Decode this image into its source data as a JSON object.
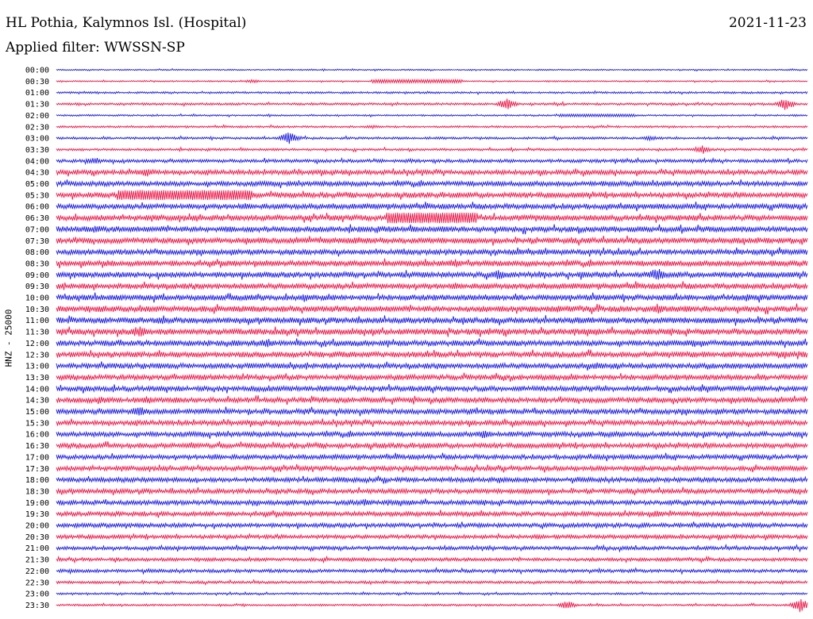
{
  "header": {
    "title": "HL Pothia, Kalymnos Isl. (Hospital)",
    "date": "2021-11-23",
    "filter": "Applied filter: WWSSN-SP",
    "ylabel": "HNZ - 25000"
  },
  "colors": {
    "blue": "#1a1ae6",
    "red": "#f01446",
    "text": "#000000"
  },
  "chart_data": {
    "type": "line",
    "ylabel": "HNZ - 25000",
    "trace_labels": [
      "00:00",
      "00:30",
      "01:00",
      "01:30",
      "02:00",
      "02:30",
      "03:00",
      "03:30",
      "04:00",
      "04:30",
      "05:00",
      "05:30",
      "06:00",
      "06:30",
      "07:00",
      "07:30",
      "08:00",
      "08:30",
      "09:00",
      "09:30",
      "10:00",
      "10:30",
      "11:00",
      "11:30",
      "12:00",
      "12:30",
      "13:00",
      "13:30",
      "14:00",
      "14:30",
      "15:00",
      "15:30",
      "16:00",
      "16:30",
      "17:00",
      "17:30",
      "18:00",
      "18:30",
      "19:00",
      "19:30",
      "20:00",
      "20:30",
      "21:00",
      "21:30",
      "22:00",
      "22:30",
      "23:00",
      "23:30"
    ],
    "trace_colors_cycle": [
      "blue",
      "red"
    ],
    "relative_noise_amplitude": [
      0.2,
      0.2,
      0.3,
      0.35,
      0.25,
      0.3,
      0.35,
      0.35,
      0.5,
      0.7,
      0.75,
      0.8,
      0.8,
      0.85,
      0.85,
      0.85,
      0.8,
      0.85,
      0.85,
      0.85,
      0.85,
      0.9,
      0.9,
      0.9,
      0.85,
      0.85,
      0.8,
      0.8,
      0.8,
      0.8,
      0.8,
      0.75,
      0.75,
      0.75,
      0.7,
      0.7,
      0.7,
      0.7,
      0.7,
      0.7,
      0.65,
      0.6,
      0.55,
      0.5,
      0.5,
      0.4,
      0.3,
      0.3
    ],
    "events": [
      {
        "trace": "00:30",
        "t": 0.26,
        "amp": 0.6
      },
      {
        "trace": "00:30",
        "t": 0.48,
        "amp": 0.5,
        "width": 0.12
      },
      {
        "trace": "01:30",
        "t": 0.6,
        "amp": 1.8
      },
      {
        "trace": "01:30",
        "t": 0.97,
        "amp": 1.8
      },
      {
        "trace": "02:00",
        "t": 0.72,
        "amp": 0.4,
        "width": 0.1
      },
      {
        "trace": "02:30",
        "t": 0.42,
        "amp": 0.6
      },
      {
        "trace": "03:00",
        "t": 0.31,
        "amp": 2.0
      },
      {
        "trace": "03:00",
        "t": 0.79,
        "amp": 0.8
      },
      {
        "trace": "03:30",
        "t": 0.86,
        "amp": 1.4
      },
      {
        "trace": "04:00",
        "t": 0.05,
        "amp": 1.2
      },
      {
        "trace": "04:30",
        "t": 0.12,
        "amp": 1.4
      },
      {
        "trace": "05:30",
        "t": 0.17,
        "amp": 1.5,
        "width": 0.18
      },
      {
        "trace": "06:30",
        "t": 0.5,
        "amp": 1.6,
        "width": 0.12
      },
      {
        "trace": "07:00",
        "t": 0.05,
        "amp": 1.1
      },
      {
        "trace": "07:00",
        "t": 0.23,
        "amp": 1.1
      },
      {
        "trace": "07:30",
        "t": 0.4,
        "amp": 1.1
      },
      {
        "trace": "08:30",
        "t": 0.07,
        "amp": 1.2
      },
      {
        "trace": "08:30",
        "t": 0.53,
        "amp": 1.4
      },
      {
        "trace": "09:00",
        "t": 0.59,
        "amp": 1.7
      },
      {
        "trace": "09:00",
        "t": 0.8,
        "amp": 2.2
      },
      {
        "trace": "10:00",
        "t": 0.33,
        "amp": 1.3
      },
      {
        "trace": "10:00",
        "t": 0.92,
        "amp": 1.3
      },
      {
        "trace": "10:30",
        "t": 0.8,
        "amp": 1.6
      },
      {
        "trace": "11:00",
        "t": 0.14,
        "amp": 1.3
      },
      {
        "trace": "11:30",
        "t": 0.11,
        "amp": 1.8
      },
      {
        "trace": "12:00",
        "t": 0.28,
        "amp": 1.5
      },
      {
        "trace": "12:00",
        "t": 0.85,
        "amp": 1.3
      },
      {
        "trace": "12:30",
        "t": 0.97,
        "amp": 1.4
      },
      {
        "trace": "13:00",
        "t": 0.72,
        "amp": 1.2
      },
      {
        "trace": "14:30",
        "t": 0.06,
        "amp": 1.2
      },
      {
        "trace": "14:30",
        "t": 0.12,
        "amp": 1.3
      },
      {
        "trace": "15:00",
        "t": 0.11,
        "amp": 1.7
      },
      {
        "trace": "16:00",
        "t": 0.57,
        "amp": 1.6
      },
      {
        "trace": "16:30",
        "t": 0.18,
        "amp": 1.2
      },
      {
        "trace": "19:00",
        "t": 0.41,
        "amp": 1.2
      },
      {
        "trace": "19:30",
        "t": 0.8,
        "amp": 1.1
      },
      {
        "trace": "23:30",
        "t": 0.68,
        "amp": 1.3
      },
      {
        "trace": "23:30",
        "t": 0.99,
        "amp": 2.2
      }
    ]
  }
}
